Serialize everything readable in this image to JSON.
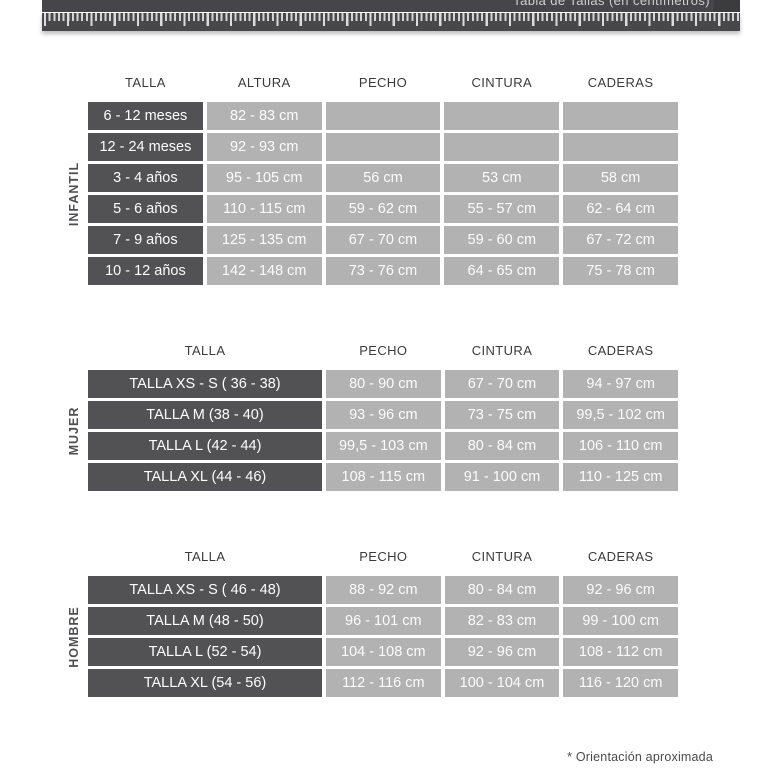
{
  "header": {
    "title": "Tabla de Tallas (en centímetros)"
  },
  "footnote": "* Orientación aproximada",
  "colors": {
    "bar": "#46464a",
    "dark_cell": "#525255",
    "light_cell": "#b2b2b2"
  },
  "tables": [
    {
      "group_label": "INFANTIL",
      "columns": [
        "TALLA",
        "ALTURA",
        "PECHO",
        "CINTURA",
        "CADERAS"
      ],
      "rows": [
        [
          "6 - 12 meses",
          "82 - 83 cm",
          "",
          "",
          ""
        ],
        [
          "12 - 24 meses",
          "92 - 93 cm",
          "",
          "",
          ""
        ],
        [
          "3 - 4 años",
          "95 - 105 cm",
          "56 cm",
          "53 cm",
          "58 cm"
        ],
        [
          "5 - 6 años",
          "110 - 115 cm",
          "59 - 62 cm",
          "55 - 57 cm",
          "62 - 64 cm"
        ],
        [
          "7 - 9 años",
          "125 - 135 cm",
          "67 - 70 cm",
          "59 - 60 cm",
          "67 - 72 cm"
        ],
        [
          "10 - 12 años",
          "142 - 148 cm",
          "73 - 76 cm",
          "64 - 65 cm",
          "75 - 78 cm"
        ]
      ]
    },
    {
      "group_label": "MUJER",
      "columns": [
        "TALLA",
        "PECHO",
        "CINTURA",
        "CADERAS"
      ],
      "rows": [
        [
          "TALLA XS - S ( 36 - 38)",
          "80 - 90 cm",
          "67 - 70 cm",
          "94 - 97 cm"
        ],
        [
          "TALLA M (38 - 40)",
          "93 - 96 cm",
          "73 - 75 cm",
          "99,5 - 102 cm"
        ],
        [
          "TALLA L (42 - 44)",
          "99,5 - 103 cm",
          "80 - 84 cm",
          "106 - 110 cm"
        ],
        [
          "TALLA XL (44 - 46)",
          "108 - 115 cm",
          "91 - 100 cm",
          "110 - 125 cm"
        ]
      ]
    },
    {
      "group_label": "HOMBRE",
      "columns": [
        "TALLA",
        "PECHO",
        "CINTURA",
        "CADERAS"
      ],
      "rows": [
        [
          "TALLA XS - S ( 46 - 48)",
          "88 - 92 cm",
          "80 - 84 cm",
          "92 - 96 cm"
        ],
        [
          "TALLA M (48 - 50)",
          "96 - 101 cm",
          "82 - 83 cm",
          "99 - 100 cm"
        ],
        [
          "TALLA L (52 - 54)",
          "104 - 108 cm",
          "92 - 96 cm",
          "108 - 112 cm"
        ],
        [
          "TALLA XL (54 - 56)",
          "112 - 116 cm",
          "100 - 104 cm",
          "116 - 120 cm"
        ]
      ]
    }
  ]
}
